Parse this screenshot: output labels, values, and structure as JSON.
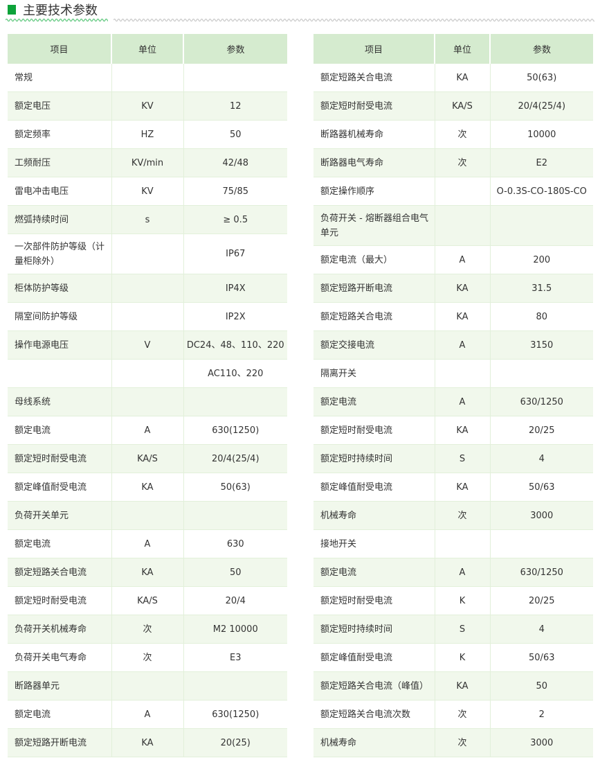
{
  "title": "主要技术参数",
  "colors": {
    "accent": "#0da33a",
    "header_bg": "#d5ebcf",
    "stripe_bg": "#f1f8ec"
  },
  "left_table": {
    "headers": [
      "项目",
      "单位",
      "参数"
    ],
    "rows": [
      [
        "常规",
        "",
        ""
      ],
      [
        "额定电压",
        "KV",
        "12"
      ],
      [
        "额定频率",
        "HZ",
        "50"
      ],
      [
        "工频耐压",
        "KV/min",
        "42/48"
      ],
      [
        "雷电冲击电压",
        "KV",
        "75/85"
      ],
      [
        "燃弧持续时间",
        "s",
        "≥ 0.5"
      ],
      [
        "一次部件防护等级（计量柜除外）",
        "",
        "IP67"
      ],
      [
        "柜体防护等级",
        "",
        "IP4X"
      ],
      [
        "隔室间防护等级",
        "",
        "IP2X"
      ],
      [
        "操作电源电压",
        "V",
        "DC24、48、110、220"
      ],
      [
        "",
        "",
        "AC110、220"
      ],
      [
        "母线系统",
        "",
        ""
      ],
      [
        "额定电流",
        "A",
        "630(1250)"
      ],
      [
        "额定短时耐受电流",
        "KA/S",
        "20/4(25/4)"
      ],
      [
        "额定峰值耐受电流",
        "KA",
        "50(63)"
      ],
      [
        "负荷开关单元",
        "",
        ""
      ],
      [
        "额定电流",
        "A",
        "630"
      ],
      [
        "额定短路关合电流",
        "KA",
        "50"
      ],
      [
        "额定短时耐受电流",
        "KA/S",
        "20/4"
      ],
      [
        "负荷开关机械寿命",
        "次",
        "M2  10000"
      ],
      [
        "负荷开关电气寿命",
        "次",
        "E3"
      ],
      [
        "断路器单元",
        "",
        ""
      ],
      [
        "额定电流",
        "A",
        "630(1250)"
      ],
      [
        "额定短路开断电流",
        "KA",
        "20(25)"
      ]
    ]
  },
  "right_table": {
    "headers": [
      "项目",
      "单位",
      "参数"
    ],
    "rows": [
      [
        "额定短路关合电流",
        "KA",
        "50(63)"
      ],
      [
        "额定短时耐受电流",
        "KA/S",
        "20/4(25/4)"
      ],
      [
        "断路器机械寿命",
        "次",
        "10000"
      ],
      [
        "断路器电气寿命",
        "次",
        "E2"
      ],
      [
        "额定操作顺序",
        "",
        "O-0.3S-CO-180S-CO"
      ],
      [
        "负荷开关 - 熔断器组合电气单元",
        "",
        ""
      ],
      [
        "额定电流（最大）",
        "A",
        "200"
      ],
      [
        "额定短路开断电流",
        "KA",
        "31.5"
      ],
      [
        "额定短路关合电流",
        "KA",
        "80"
      ],
      [
        "额定交接电流",
        "A",
        "3150"
      ],
      [
        "隔离开关",
        "",
        ""
      ],
      [
        "额定电流",
        "A",
        "630/1250"
      ],
      [
        "额定短时耐受电流",
        "KA",
        "20/25"
      ],
      [
        "额定短时持续时间",
        "S",
        "4"
      ],
      [
        "额定峰值耐受电流",
        "KA",
        "50/63"
      ],
      [
        "机械寿命",
        "次",
        "3000"
      ],
      [
        "接地开关",
        "",
        ""
      ],
      [
        "额定电流",
        "A",
        "630/1250"
      ],
      [
        "额定短时耐受电流",
        "K",
        "20/25"
      ],
      [
        "额定短时持续时间",
        "S",
        "4"
      ],
      [
        "额定峰值耐受电流",
        "K",
        "50/63"
      ],
      [
        "额定短路关合电流（峰值）",
        "KA",
        "50"
      ],
      [
        "额定短路关合电流次数",
        "次",
        "2"
      ],
      [
        "机械寿命",
        "次",
        "3000"
      ]
    ]
  }
}
